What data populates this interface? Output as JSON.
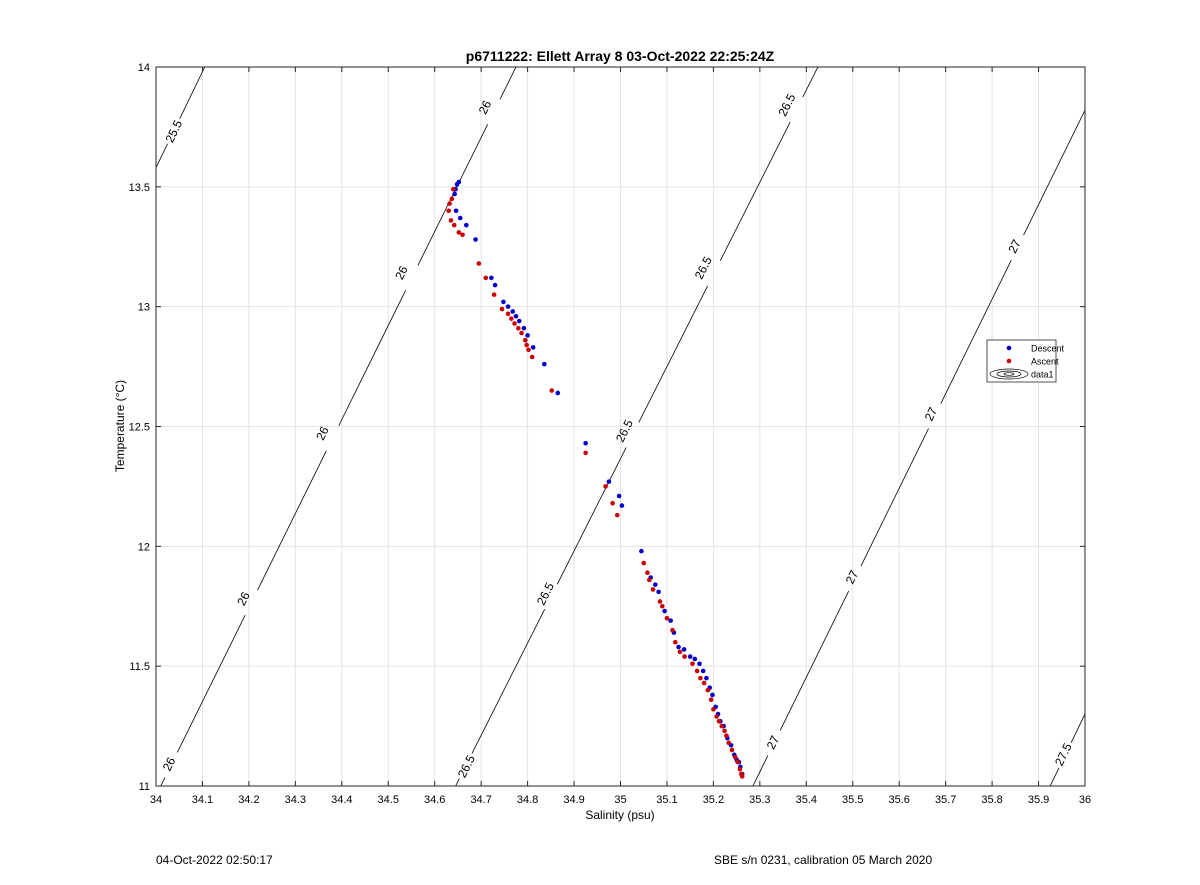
{
  "chart_data": {
    "type": "scatter",
    "title": "p6711222: Ellett Array 8 03-Oct-2022 22:25:24Z",
    "xlabel": "Salinity (psu)",
    "ylabel": "Temperature (°C)",
    "xlim": [
      34,
      36
    ],
    "ylim": [
      11,
      14
    ],
    "x_ticks": [
      34,
      34.1,
      34.2,
      34.3,
      34.4,
      34.5,
      34.6,
      34.7,
      34.8,
      34.9,
      35,
      35.1,
      35.2,
      35.3,
      35.4,
      35.5,
      35.6,
      35.7,
      35.8,
      35.9,
      36
    ],
    "x_tick_labels": [
      "34",
      "34.1",
      "34.2",
      "34.3",
      "34.4",
      "34.5",
      "34.6",
      "34.7",
      "34.8",
      "34.9",
      "35",
      "35.1",
      "35.2",
      "35.3",
      "35.4",
      "35.5",
      "35.6",
      "35.7",
      "35.8",
      "35.9",
      "36"
    ],
    "y_ticks": [
      11,
      11.5,
      12,
      12.5,
      13,
      13.5,
      14
    ],
    "y_tick_labels": [
      "11",
      "11.5",
      "12",
      "12.5",
      "13",
      "13.5",
      "14"
    ],
    "grid": true,
    "legend_position": "right",
    "legend": [
      "Descent",
      "Ascent",
      "data1"
    ],
    "series": [
      {
        "name": "Descent",
        "color": "#0000cc",
        "points": [
          [
            34.652,
            13.52
          ],
          [
            34.648,
            13.51
          ],
          [
            34.645,
            13.49
          ],
          [
            34.643,
            13.47
          ],
          [
            34.646,
            13.4
          ],
          [
            34.655,
            13.37
          ],
          [
            34.668,
            13.34
          ],
          [
            34.688,
            13.28
          ],
          [
            34.722,
            13.12
          ],
          [
            34.73,
            13.09
          ],
          [
            34.748,
            13.02
          ],
          [
            34.758,
            13.0
          ],
          [
            34.768,
            12.98
          ],
          [
            34.775,
            12.96
          ],
          [
            34.782,
            12.94
          ],
          [
            34.792,
            12.91
          ],
          [
            34.8,
            12.88
          ],
          [
            34.812,
            12.83
          ],
          [
            34.836,
            12.76
          ],
          [
            34.865,
            12.64
          ],
          [
            34.925,
            12.43
          ],
          [
            34.975,
            12.27
          ],
          [
            34.997,
            12.21
          ],
          [
            35.003,
            12.17
          ],
          [
            35.045,
            11.98
          ],
          [
            35.065,
            11.87
          ],
          [
            35.075,
            11.84
          ],
          [
            35.082,
            11.81
          ],
          [
            35.095,
            11.73
          ],
          [
            35.108,
            11.69
          ],
          [
            35.115,
            11.64
          ],
          [
            35.125,
            11.58
          ],
          [
            35.137,
            11.57
          ],
          [
            35.15,
            11.54
          ],
          [
            35.16,
            11.53
          ],
          [
            35.17,
            11.51
          ],
          [
            35.178,
            11.48
          ],
          [
            35.185,
            11.45
          ],
          [
            35.192,
            11.41
          ],
          [
            35.198,
            11.38
          ],
          [
            35.205,
            11.33
          ],
          [
            35.21,
            11.3
          ],
          [
            35.215,
            11.27
          ],
          [
            35.222,
            11.25
          ],
          [
            35.23,
            11.2
          ],
          [
            35.238,
            11.17
          ],
          [
            35.245,
            11.13
          ],
          [
            35.25,
            11.11
          ],
          [
            35.255,
            11.1
          ],
          [
            35.258,
            11.08
          ],
          [
            35.262,
            11.05
          ]
        ]
      },
      {
        "name": "Ascent",
        "color": "#cc0000",
        "points": [
          [
            34.64,
            13.49
          ],
          [
            34.637,
            13.45
          ],
          [
            34.632,
            13.43
          ],
          [
            34.63,
            13.4
          ],
          [
            34.635,
            13.36
          ],
          [
            34.642,
            13.34
          ],
          [
            34.652,
            13.31
          ],
          [
            34.66,
            13.3
          ],
          [
            34.695,
            13.18
          ],
          [
            34.71,
            13.12
          ],
          [
            34.728,
            13.05
          ],
          [
            34.745,
            12.99
          ],
          [
            34.758,
            12.97
          ],
          [
            34.765,
            12.95
          ],
          [
            34.772,
            12.93
          ],
          [
            34.78,
            12.91
          ],
          [
            34.787,
            12.89
          ],
          [
            34.795,
            12.86
          ],
          [
            34.798,
            12.84
          ],
          [
            34.802,
            12.82
          ],
          [
            34.81,
            12.79
          ],
          [
            34.852,
            12.65
          ],
          [
            34.925,
            12.39
          ],
          [
            34.968,
            12.25
          ],
          [
            34.983,
            12.18
          ],
          [
            34.993,
            12.13
          ],
          [
            35.05,
            11.93
          ],
          [
            35.058,
            11.89
          ],
          [
            35.062,
            11.86
          ],
          [
            35.07,
            11.82
          ],
          [
            35.085,
            11.77
          ],
          [
            35.09,
            11.75
          ],
          [
            35.1,
            11.7
          ],
          [
            35.112,
            11.65
          ],
          [
            35.118,
            11.6
          ],
          [
            35.128,
            11.56
          ],
          [
            35.138,
            11.54
          ],
          [
            35.155,
            11.51
          ],
          [
            35.165,
            11.48
          ],
          [
            35.172,
            11.45
          ],
          [
            35.18,
            11.43
          ],
          [
            35.188,
            11.4
          ],
          [
            35.195,
            11.36
          ],
          [
            35.2,
            11.32
          ],
          [
            35.207,
            11.29
          ],
          [
            35.212,
            11.27
          ],
          [
            35.218,
            11.25
          ],
          [
            35.224,
            11.23
          ],
          [
            35.228,
            11.21
          ],
          [
            35.233,
            11.18
          ],
          [
            35.24,
            11.15
          ],
          [
            35.247,
            11.12
          ],
          [
            35.252,
            11.1
          ],
          [
            35.257,
            11.07
          ],
          [
            35.26,
            11.05
          ],
          [
            35.262,
            11.04
          ]
        ]
      }
    ],
    "density_contours": [
      {
        "label": "25.5",
        "segment": [
          [
            34.0,
            13.58
          ],
          [
            34.105,
            14.0
          ]
        ],
        "labels_at": [
          [
            34.04,
            13.73
          ]
        ]
      },
      {
        "label": "26",
        "segment": [
          [
            34.0,
            10.96
          ],
          [
            34.775,
            14.0
          ]
        ],
        "labels_at": [
          [
            34.03,
            11.09
          ],
          [
            34.19,
            11.78
          ],
          [
            34.36,
            12.47
          ],
          [
            34.53,
            13.14
          ],
          [
            34.71,
            13.83
          ]
        ]
      },
      {
        "label": "26.5",
        "segment": [
          [
            34.645,
            11.0
          ],
          [
            35.425,
            14.0
          ]
        ],
        "labels_at": [
          [
            34.67,
            11.08
          ],
          [
            34.84,
            11.8
          ],
          [
            35.01,
            12.48
          ],
          [
            35.18,
            13.16
          ],
          [
            35.36,
            13.84
          ]
        ]
      },
      {
        "label": "27",
        "segment": [
          [
            35.285,
            11.0
          ],
          [
            36.0,
            13.82
          ]
        ],
        "labels_at": [
          [
            35.33,
            11.18
          ],
          [
            35.5,
            11.87
          ],
          [
            35.67,
            12.55
          ],
          [
            35.85,
            13.25
          ]
        ]
      },
      {
        "label": "27.5",
        "segment": [
          [
            35.925,
            11.0
          ],
          [
            36.0,
            11.3
          ]
        ],
        "labels_at": [
          [
            35.955,
            11.13
          ]
        ]
      }
    ]
  },
  "footer": {
    "left": "04-Oct-2022 02:50:17",
    "right": "SBE s/n 0231, calibration 05 March 2020"
  }
}
